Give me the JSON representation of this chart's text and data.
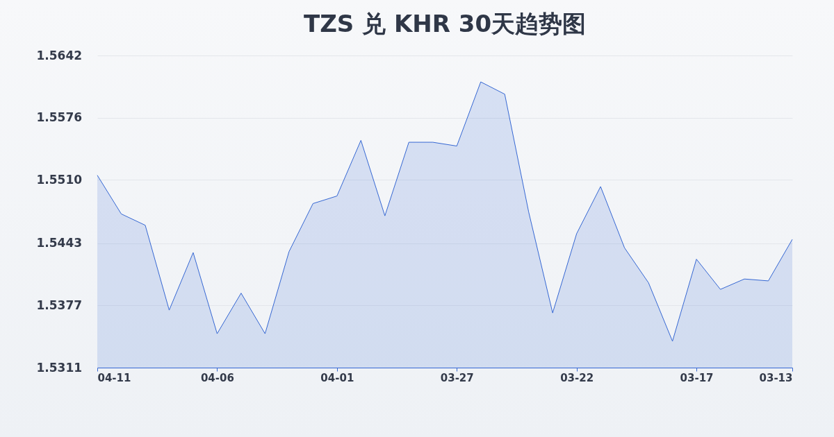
{
  "chart_data": {
    "type": "area",
    "title": "TZS 兑 KHR 30天趋势图",
    "x": [
      "--04-11",
      "--04-10",
      "--04-09",
      "--04-08",
      "--04-07",
      "--04-06",
      "--04-05",
      "--04-04",
      "--04-03",
      "--04-02",
      "--04-01",
      "--03-31",
      "--03-30",
      "--03-29",
      "--03-28",
      "--03-27",
      "--03-26",
      "--03-25",
      "--03-24",
      "--03-23",
      "--03-22",
      "--03-21",
      "--03-20",
      "--03-19",
      "--03-18",
      "--03-17",
      "--03-16",
      "--03-15",
      "--03-14",
      "--03-13"
    ],
    "xlim": [
      "--04-11",
      "--03-13"
    ],
    "xticks": [
      {
        "value": "--04-11",
        "label": "04-11"
      },
      {
        "value": "--04-06",
        "label": "04-06"
      },
      {
        "value": "--04-01",
        "label": "04-01"
      },
      {
        "value": "--03-27",
        "label": "03-27"
      },
      {
        "value": "--03-22",
        "label": "03-22"
      },
      {
        "value": "--03-17",
        "label": "03-17"
      },
      {
        "value": "--03-13",
        "label": "03-13"
      }
    ],
    "series": [
      {
        "color": "#3567d3",
        "values": [
          1.5515,
          1.5474,
          1.5462,
          1.5372,
          1.5433,
          1.5347,
          1.539,
          1.5347,
          1.5434,
          1.5485,
          1.5493,
          1.5552,
          1.5472,
          1.555,
          1.555,
          1.5546,
          1.5614,
          1.5601,
          1.5476,
          1.5369,
          1.5453,
          1.5503,
          1.5438,
          1.5401,
          1.5339,
          1.5426,
          1.5394,
          1.5405,
          1.5403,
          1.5447
        ]
      }
    ],
    "ylim": [
      1.5311,
      1.5642
    ],
    "yticks": [
      1.5311,
      1.5377,
      1.5443,
      {
        "value": 1.551,
        "label": "1.5510"
      },
      1.5576,
      1.5642
    ],
    "grid": "y"
  }
}
